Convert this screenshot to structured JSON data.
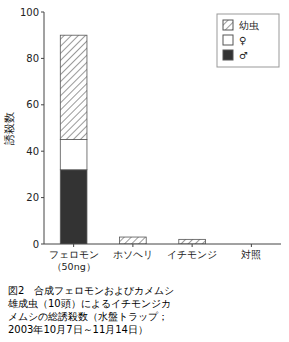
{
  "chart_data": {
    "type": "bar",
    "stacked": true,
    "categories": [
      "フェロモン\n（50ng）",
      "ホソヘリ",
      "イチモンジ",
      "対照"
    ],
    "series": [
      {
        "name": "♂",
        "color": "#333333",
        "values": [
          32,
          0,
          0,
          0
        ]
      },
      {
        "name": "♀",
        "color": "#ffffff",
        "values": [
          13,
          0,
          0,
          0
        ]
      },
      {
        "name": "幼虫",
        "color": "#ffffff",
        "values": [
          45,
          3,
          2,
          0
        ]
      }
    ],
    "y_label": "誘殺数",
    "ylim": [
      0,
      100
    ],
    "yticks": [
      0,
      20,
      40,
      60,
      80,
      100
    ],
    "grid": false,
    "legend": "upper right",
    "annotations": [
      "図2　合成フェロモンおよびカメムシ",
      "雄成虫（10頭）によるイチモンジカ",
      "メムシの総誘殺数（水盤トラップ；",
      "2003年10月7日～11月14日）"
    ]
  }
}
